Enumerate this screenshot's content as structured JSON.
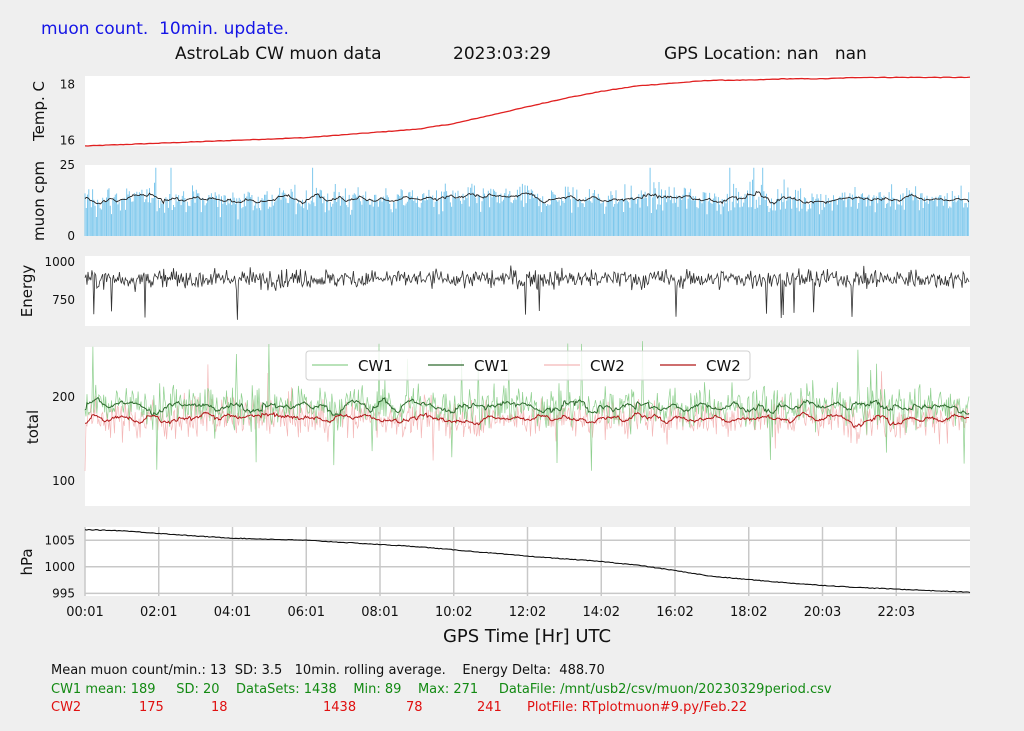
{
  "header": {
    "note": "muon count.  10min. update.",
    "title": "AstroLab CW muon data",
    "date": "2023:03:29",
    "gps": "GPS Location: nan   nan"
  },
  "colors": {
    "temp": "#e02020",
    "cpm_bars": "#7fc8ec",
    "cpm_avg": "#222222",
    "energy": "#333333",
    "cw1_raw": "#8fd08f",
    "cw1_avg": "#2e6b2e",
    "cw2_raw": "#f4b8b8",
    "cw2_avg": "#b01818",
    "pressure": "#111111"
  },
  "chart_data": [
    {
      "id": "temp",
      "type": "line",
      "ylabel": "Temp. C",
      "yticks": [
        "16",
        "18"
      ],
      "ylim": [
        15.8,
        18.3
      ],
      "series": [
        {
          "x": [
            0,
            1,
            2,
            3,
            4,
            5,
            6,
            7,
            8,
            9,
            10,
            11,
            12,
            13,
            14,
            15,
            16,
            17,
            18,
            19,
            20,
            21,
            22,
            23,
            24
          ],
          "values": [
            15.8,
            15.85,
            15.9,
            15.95,
            16.0,
            16.05,
            16.1,
            16.2,
            16.3,
            16.4,
            16.6,
            16.9,
            17.2,
            17.5,
            17.75,
            17.95,
            18.05,
            18.15,
            18.15,
            18.2,
            18.2,
            18.25,
            18.25,
            18.25,
            18.25
          ]
        }
      ]
    },
    {
      "id": "cpm",
      "type": "bar",
      "ylabel": "muon cpm",
      "yticks": [
        "0",
        "25"
      ],
      "ylim": [
        0,
        25
      ],
      "mean": 13,
      "sd": 3.5,
      "rolling_avg": 13,
      "range": [
        0,
        22
      ]
    },
    {
      "id": "energy",
      "type": "line",
      "ylabel": "Energy",
      "yticks": [
        "750",
        "1000"
      ],
      "ylim": [
        580,
        1040
      ],
      "mean": 890,
      "range": [
        620,
        1010
      ]
    },
    {
      "id": "total",
      "type": "line",
      "ylabel": "total",
      "yticks": [
        "100",
        "200"
      ],
      "ylim": [
        70,
        260
      ],
      "legend": [
        "CW1",
        "CW1",
        "CW2",
        "CW2"
      ],
      "legend_position": "top",
      "series": [
        {
          "name": "CW1",
          "mean": 189,
          "sd": 20,
          "min": 89,
          "max": 271,
          "datasets": 1438
        },
        {
          "name": "CW2",
          "mean": 175,
          "sd": 18,
          "min": 78,
          "max": 241,
          "datasets": 1438
        }
      ]
    },
    {
      "id": "pressure",
      "type": "line",
      "ylabel": "hPa",
      "yticks": [
        "995",
        "1000",
        "1005"
      ],
      "ylim": [
        994.5,
        1007.5
      ],
      "grid": true,
      "xlabel": "GPS Time  [Hr] UTC",
      "xticks": [
        "00:01",
        "02:01",
        "04:01",
        "06:01",
        "08:01",
        "10:02",
        "12:02",
        "14:02",
        "16:02",
        "18:02",
        "20:03",
        "22:03"
      ],
      "series": [
        {
          "x": [
            0,
            1,
            2,
            3,
            4,
            5,
            6,
            7,
            8,
            9,
            10,
            11,
            12,
            13,
            14,
            15,
            16,
            17,
            18,
            19,
            20,
            21,
            22,
            23,
            24
          ],
          "values": [
            1007.0,
            1006.8,
            1006.3,
            1005.8,
            1005.4,
            1005.2,
            1005.0,
            1004.6,
            1004.2,
            1003.8,
            1003.2,
            1002.6,
            1002.0,
            1001.5,
            1001.0,
            1000.3,
            999.3,
            998.2,
            997.6,
            997.0,
            996.5,
            996.1,
            995.8,
            995.5,
            995.2
          ]
        }
      ]
    }
  ],
  "footer": {
    "line1": "Mean muon count/min.: 13  SD: 3.5   10min. rolling average.    Energy Delta:  488.70",
    "line2": "CW1 mean: 189     SD: 20    DataSets: 1438    Min: 89    Max: 271     DataFile: /mnt/usb2/csv/muon/20230329period.csv",
    "cw2_label": "CW2",
    "cw2_mean": "175",
    "cw2_sd": "18",
    "cw2_datasets": "1438",
    "cw2_min": "78",
    "cw2_max": "241",
    "plotfile": "PlotFile: RTplotmuon#9.py/Feb.22"
  }
}
